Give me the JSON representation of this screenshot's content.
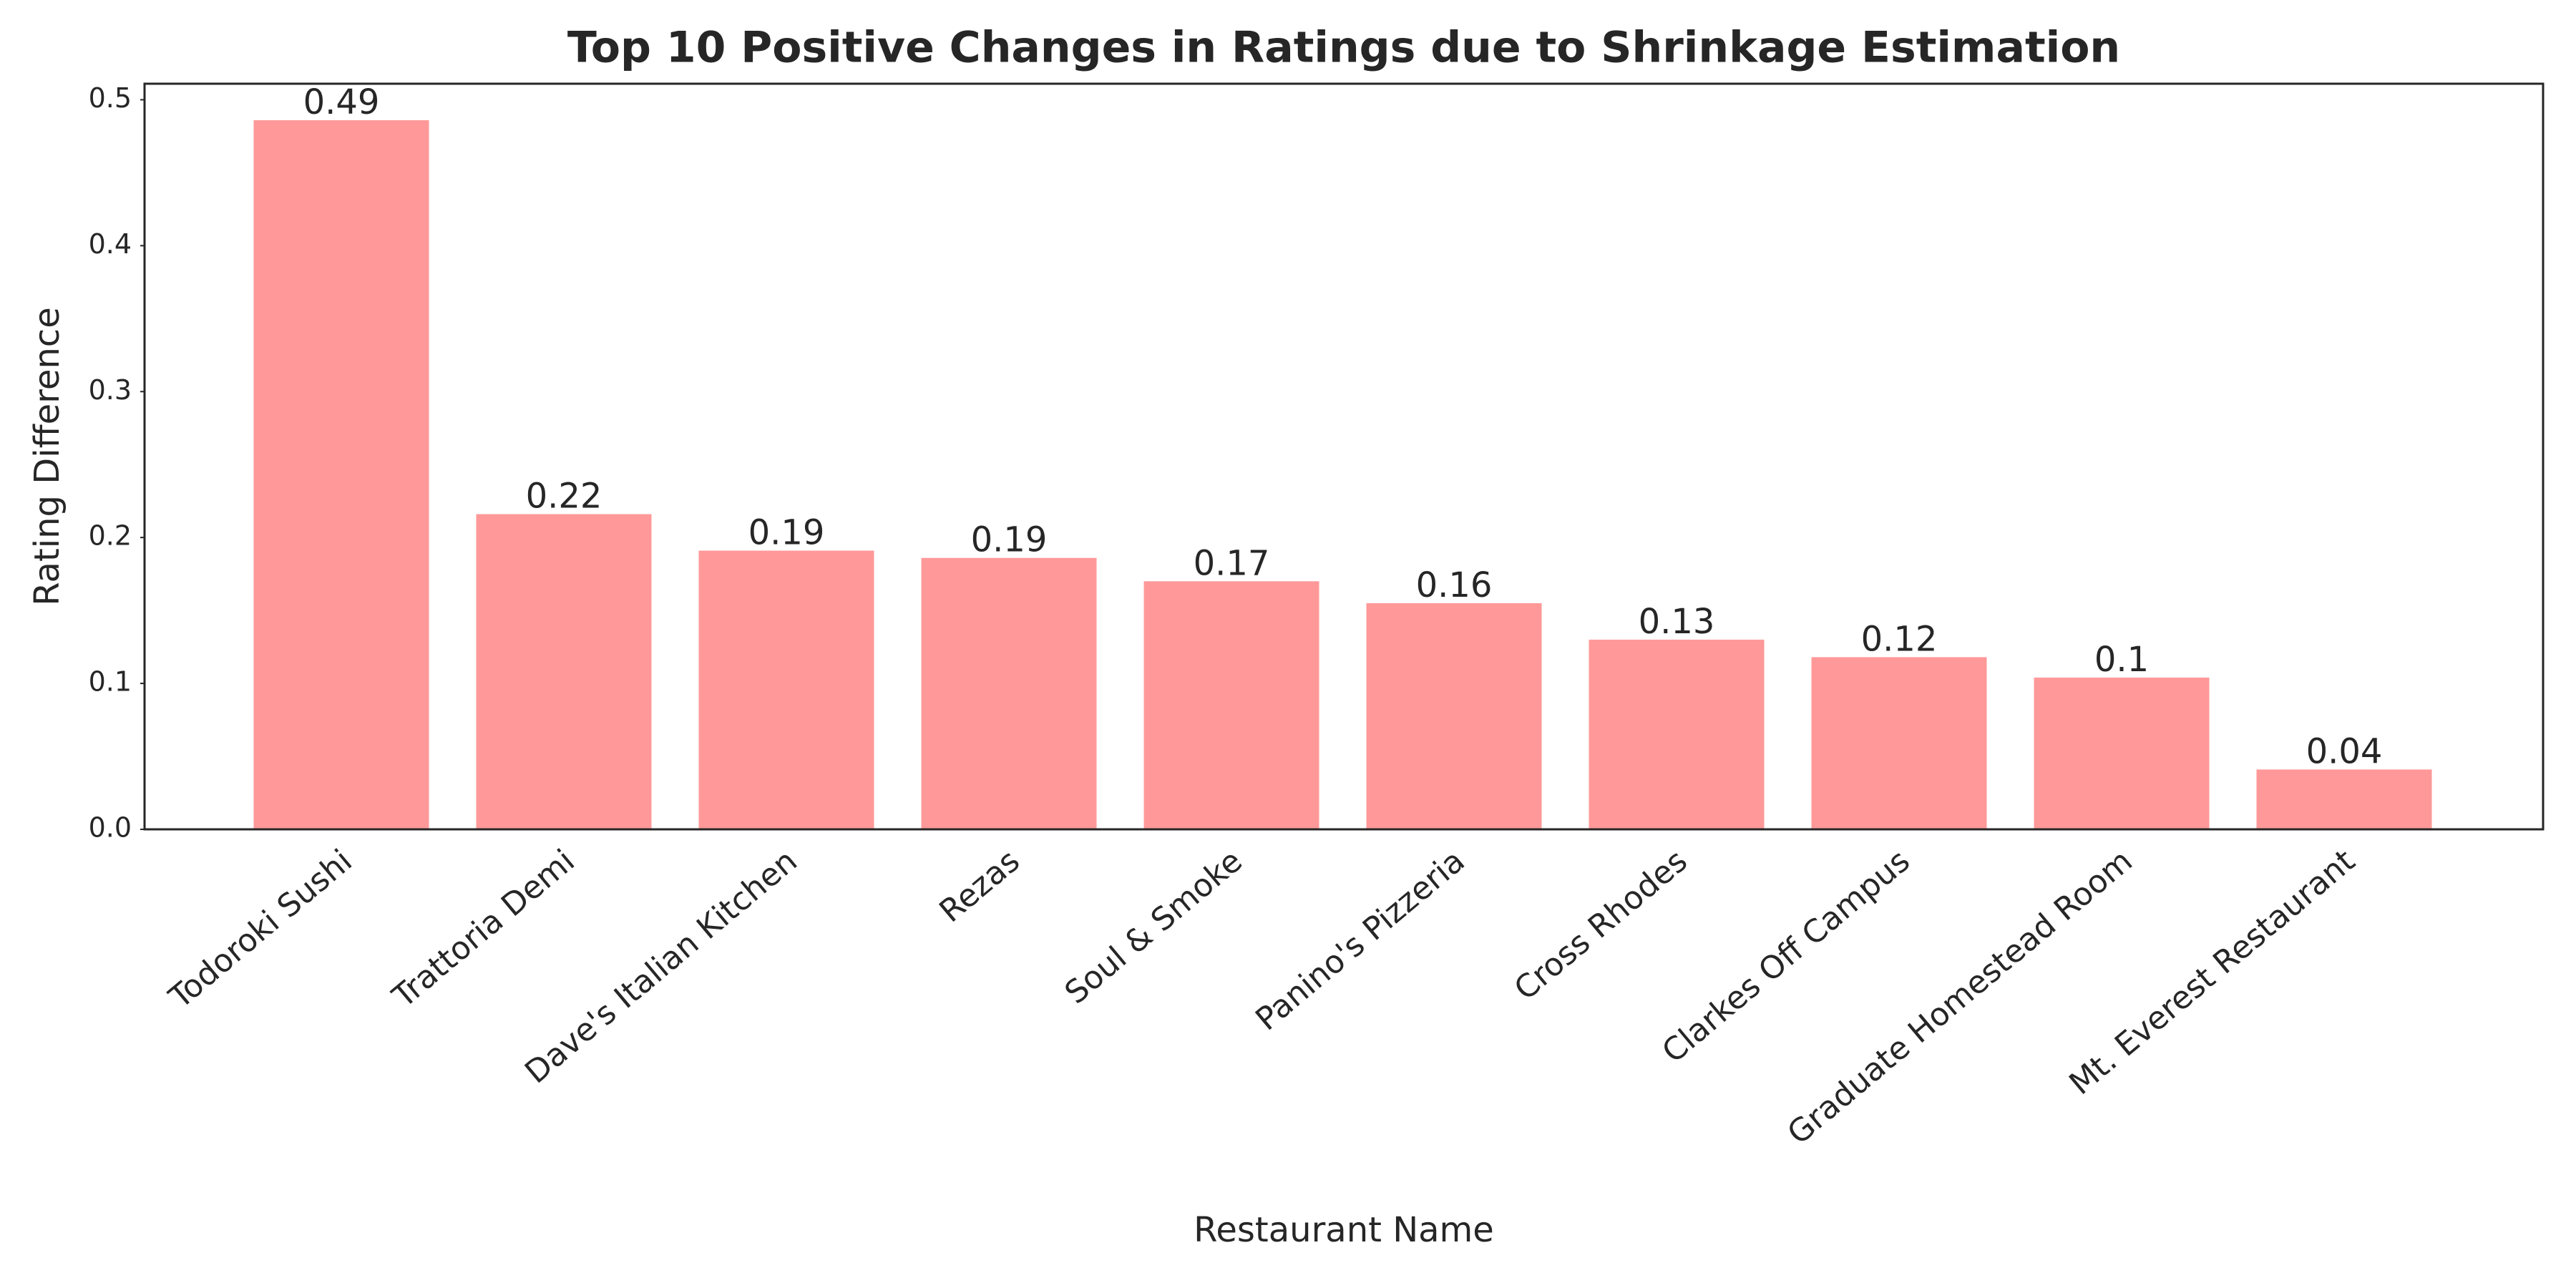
{
  "chart_data": {
    "type": "bar",
    "title": "Top 10 Positive Changes in Ratings due to Shrinkage Estimation",
    "x_label": "Restaurant Name",
    "y_label": "Rating Difference",
    "categories": [
      "Todoroki Sushi",
      "Trattoria Demi",
      "Dave's Italian Kitchen",
      "Rezas",
      "Soul & Smoke",
      "Panino's Pizzeria",
      "Cross Rhodes",
      "Clarkes Off Campus",
      "Graduate Homestead Room",
      "Mt. Everest Restaurant"
    ],
    "values": [
      0.486,
      0.216,
      0.191,
      0.186,
      0.17,
      0.155,
      0.13,
      0.118,
      0.104,
      0.041
    ],
    "value_labels": [
      "0.49",
      "0.22",
      "0.19",
      "0.19",
      "0.17",
      "0.16",
      "0.13",
      "0.12",
      "0.1",
      "0.04"
    ],
    "color": "#ff9999",
    "ylim": [
      0,
      0.511
    ],
    "yticks": [
      {
        "value": 0,
        "label": "0.0"
      },
      0.1,
      0.2,
      0.3,
      0.4,
      0.5
    ],
    "grid": false
  }
}
